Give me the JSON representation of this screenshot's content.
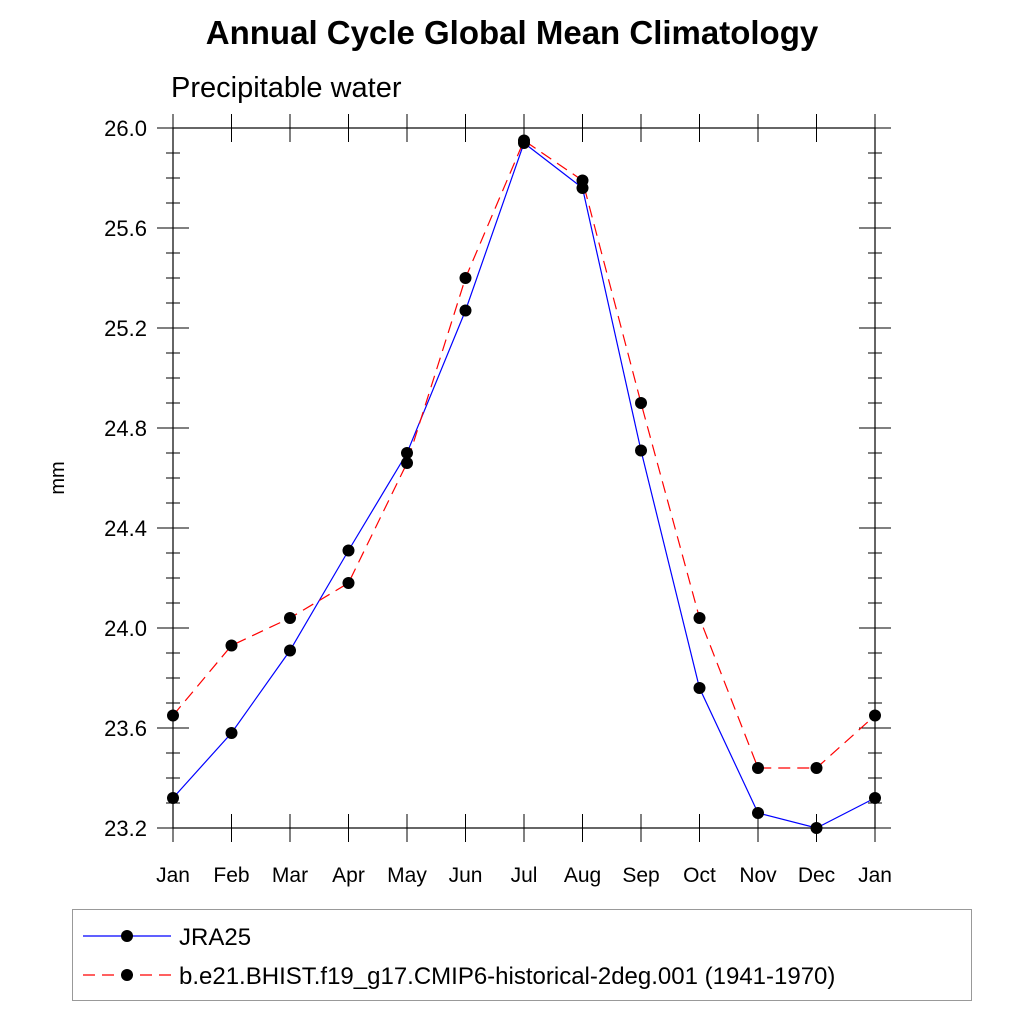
{
  "chart_data": {
    "type": "line",
    "title": "Annual Cycle Global Mean Climatology",
    "subtitle": "Precipitable water",
    "xlabel": "",
    "ylabel": "mm",
    "categories": [
      "Jan",
      "Feb",
      "Mar",
      "Apr",
      "May",
      "Jun",
      "Jul",
      "Aug",
      "Sep",
      "Oct",
      "Nov",
      "Dec",
      "Jan"
    ],
    "ylim": [
      23.2,
      26.0
    ],
    "yticks": [
      "23.2",
      "23.6",
      "24.0",
      "24.4",
      "24.8",
      "25.2",
      "25.6",
      "26.0"
    ],
    "series": [
      {
        "name": "JRA25",
        "color": "#0000ff",
        "style": "solid",
        "values": [
          23.32,
          23.58,
          23.91,
          24.31,
          24.7,
          25.27,
          25.94,
          25.76,
          24.71,
          23.76,
          23.26,
          23.2,
          23.32
        ]
      },
      {
        "name": "b.e21.BHIST.f19_g17.CMIP6-historical-2deg.001 (1941-1970)",
        "color": "#ff0000",
        "style": "dashed",
        "values": [
          23.65,
          23.93,
          24.04,
          24.18,
          24.66,
          25.4,
          25.95,
          25.79,
          24.9,
          24.04,
          23.44,
          23.44,
          23.65
        ]
      }
    ],
    "legend_position": "bottom",
    "grid": false
  }
}
